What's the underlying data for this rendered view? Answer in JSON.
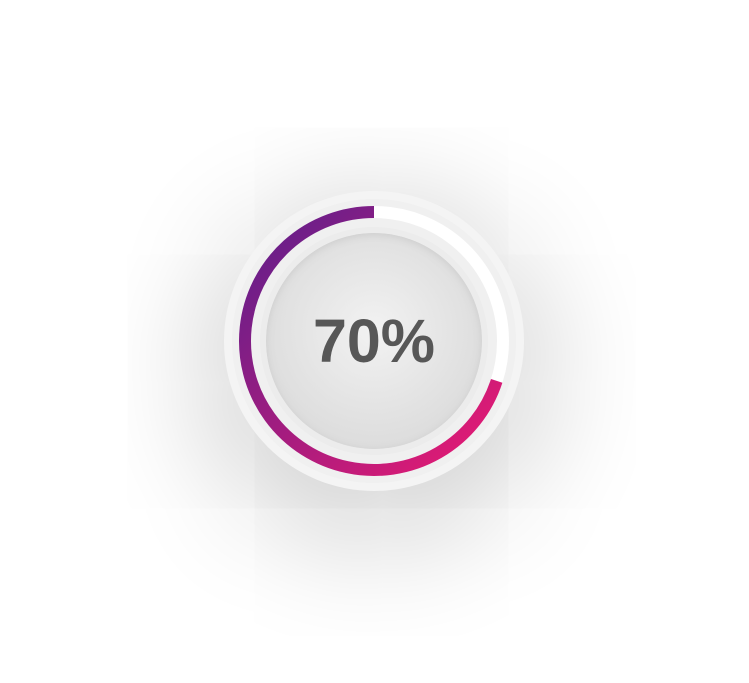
{
  "progress": {
    "value": 0.7,
    "label": "70%",
    "gradient_start": "#5b1f8c",
    "gradient_end": "#ec1a72",
    "track_color": "#ffffff",
    "label_color": "#575757"
  }
}
